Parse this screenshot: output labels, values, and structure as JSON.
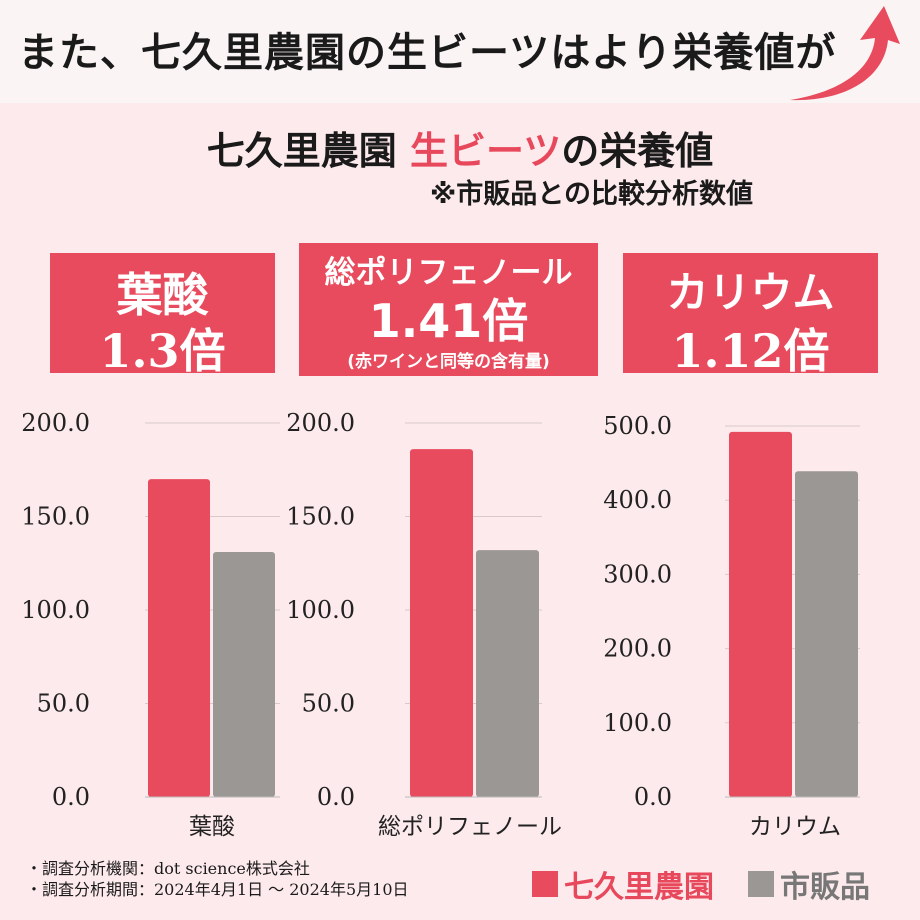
{
  "headline": "また、七久里農園の生ビーツはより栄養値が",
  "title_a": "七久里農園",
  "title_b": "生ビーツ",
  "title_c": "の栄養値",
  "subtitle": "※市販品との比較分析数値",
  "colors": {
    "accent": "#e84b5d",
    "gray": "#9a9795"
  },
  "badges": [
    {
      "line1": "葉酸",
      "line2": "1.3倍"
    },
    {
      "line1": "総ポリフェノール",
      "line2": "1.41倍",
      "line3": "(赤ワインと同等の含有量)"
    },
    {
      "line1": "カリウム",
      "line2": "1.12倍"
    }
  ],
  "chart_data": [
    {
      "type": "bar",
      "categories": [
        "葉酸"
      ],
      "ylim": [
        0,
        200
      ],
      "yticks": [
        "0.0",
        "50.0",
        "100.0",
        "150.0",
        "200.0"
      ],
      "series": [
        {
          "name": "七久里農園",
          "values": [
            170
          ]
        },
        {
          "name": "市販品",
          "values": [
            131
          ]
        }
      ]
    },
    {
      "type": "bar",
      "categories": [
        "総ポリフェノール"
      ],
      "ylim": [
        0,
        200
      ],
      "yticks": [
        "0.0",
        "50.0",
        "100.0",
        "150.0",
        "200.0"
      ],
      "series": [
        {
          "name": "七久里農園",
          "values": [
            186
          ]
        },
        {
          "name": "市販品",
          "values": [
            132
          ]
        }
      ]
    },
    {
      "type": "bar",
      "categories": [
        "カリウム"
      ],
      "ylim": [
        0,
        500
      ],
      "yticks": [
        "0.0",
        "100.0",
        "200.0",
        "300.0",
        "400.0",
        "500.0"
      ],
      "series": [
        {
          "name": "七久里農園",
          "values": [
            492
          ]
        },
        {
          "name": "市販品",
          "values": [
            439
          ]
        }
      ]
    }
  ],
  "footnotes": [
    "・調査分析機関：dot science株式会社",
    "・調査分析期間：2024年4月1日 〜 2024年5月10日"
  ],
  "legend": [
    "七久里農園",
    "市販品"
  ]
}
